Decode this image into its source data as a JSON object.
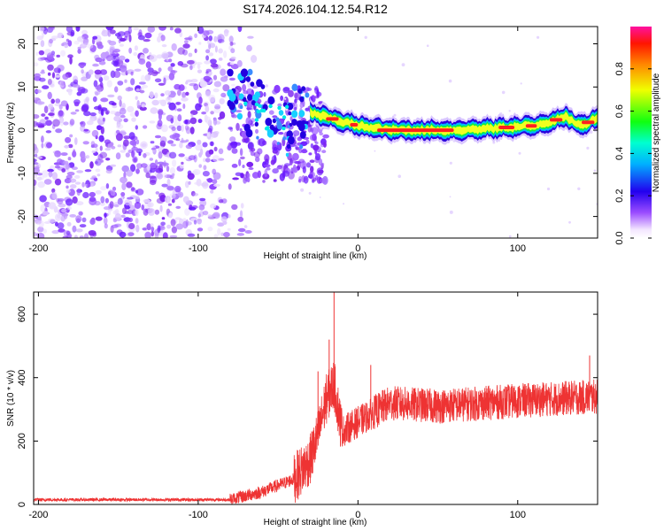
{
  "title": "S174.2026.104.12.54.R12",
  "chart_data": [
    {
      "type": "heatmap",
      "name": "spectrogram",
      "xlabel": "Height of straight line (km)",
      "ylabel": "Frequency (Hz)",
      "xlim": [
        -203,
        150
      ],
      "ylim": [
        -25,
        24
      ],
      "xticks": [
        -200,
        -100,
        0,
        100
      ],
      "yticks": [
        -20,
        -10,
        0,
        10,
        20
      ],
      "colorbar": {
        "label": "Normalized spectral amplitude",
        "range": [
          0.0,
          1.0
        ],
        "ticks": [
          "0.0",
          "0.2",
          "0.4",
          "0.6",
          "0.8"
        ],
        "tick_values": [
          0.0,
          0.2,
          0.4,
          0.6,
          0.8
        ]
      },
      "noise_region_x": [
        -203,
        -78
      ],
      "track": [
        {
          "x": -80,
          "f": 6
        },
        {
          "x": -70,
          "f": 6
        },
        {
          "x": -60,
          "f": 4
        },
        {
          "x": -50,
          "f": 2
        },
        {
          "x": -40,
          "f": 3
        },
        {
          "x": -30,
          "f": 4
        },
        {
          "x": -20,
          "f": 3
        },
        {
          "x": -10,
          "f": 2
        },
        {
          "x": 0,
          "f": 1
        },
        {
          "x": 10,
          "f": 0.5
        },
        {
          "x": 20,
          "f": 0
        },
        {
          "x": 40,
          "f": 0
        },
        {
          "x": 60,
          "f": 0
        },
        {
          "x": 80,
          "f": 0.3
        },
        {
          "x": 100,
          "f": 0.8
        },
        {
          "x": 110,
          "f": 1
        },
        {
          "x": 120,
          "f": 2
        },
        {
          "x": 130,
          "f": 3
        },
        {
          "x": 140,
          "f": 1
        },
        {
          "x": 150,
          "f": 3
        }
      ]
    },
    {
      "type": "line",
      "name": "snr",
      "xlabel": "Height of straight line (km)",
      "ylabel": "SNR (10 * v/v)",
      "xlim": [
        -203,
        150
      ],
      "ylim": [
        0,
        670
      ],
      "xticks": [
        -200,
        -100,
        0,
        100
      ],
      "yticks": [
        0,
        200,
        400,
        600
      ],
      "color": "#ee3333",
      "envelope": [
        {
          "x": -203,
          "y": 15
        },
        {
          "x": -80,
          "y": 15
        },
        {
          "x": -60,
          "y": 40
        },
        {
          "x": -40,
          "y": 80
        },
        {
          "x": -30,
          "y": 140
        },
        {
          "x": -25,
          "y": 220
        },
        {
          "x": -20,
          "y": 330
        },
        {
          "x": -15,
          "y": 380
        },
        {
          "x": -10,
          "y": 230
        },
        {
          "x": 0,
          "y": 260
        },
        {
          "x": 10,
          "y": 290
        },
        {
          "x": 20,
          "y": 320
        },
        {
          "x": 50,
          "y": 310
        },
        {
          "x": 80,
          "y": 320
        },
        {
          "x": 110,
          "y": 330
        },
        {
          "x": 150,
          "y": 340
        }
      ],
      "spikes": [
        {
          "x": -15,
          "y": 670
        },
        {
          "x": -18,
          "y": 520
        },
        {
          "x": -25,
          "y": 420
        },
        {
          "x": 8,
          "y": 440
        },
        {
          "x": 145,
          "y": 470
        }
      ]
    }
  ]
}
